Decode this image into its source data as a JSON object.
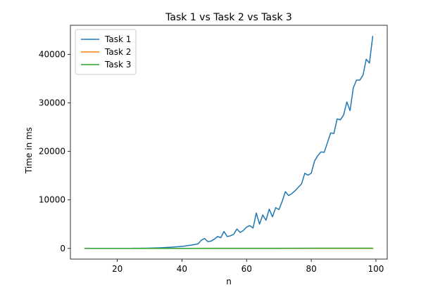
{
  "chart_data": {
    "type": "line",
    "title": "Task 1 vs Task 2 vs Task 3",
    "xlabel": "n",
    "ylabel": "Time in ms",
    "xlim": [
      5.5,
      103.5
    ],
    "ylim": [
      -2200,
      46000
    ],
    "xticks": [
      20,
      40,
      60,
      80,
      100
    ],
    "yticks": [
      0,
      10000,
      20000,
      30000,
      40000
    ],
    "grid": false,
    "legend_position": "upper-left",
    "series": [
      {
        "name": "Task 1",
        "color": "#1f77b4",
        "x": [
          10,
          11,
          12,
          13,
          14,
          15,
          16,
          17,
          18,
          19,
          20,
          21,
          22,
          23,
          24,
          25,
          26,
          27,
          28,
          29,
          30,
          31,
          32,
          33,
          34,
          35,
          36,
          37,
          38,
          39,
          40,
          41,
          42,
          43,
          44,
          45,
          46,
          47,
          48,
          49,
          50,
          51,
          52,
          53,
          54,
          55,
          56,
          57,
          58,
          59,
          60,
          61,
          62,
          63,
          64,
          65,
          66,
          67,
          68,
          69,
          70,
          71,
          72,
          73,
          74,
          75,
          76,
          77,
          78,
          79,
          80,
          81,
          82,
          83,
          84,
          85,
          86,
          87,
          88,
          89,
          90,
          91,
          92,
          93,
          94,
          95,
          96,
          97,
          98,
          99
        ],
        "values": [
          0,
          0,
          0,
          0,
          0,
          0,
          0,
          0,
          0,
          0,
          5,
          5,
          10,
          10,
          15,
          20,
          25,
          30,
          40,
          50,
          65,
          80,
          100,
          120,
          150,
          180,
          220,
          260,
          310,
          370,
          430,
          500,
          600,
          700,
          800,
          950,
          1700,
          2050,
          1400,
          1500,
          1900,
          2450,
          2200,
          3500,
          2450,
          2600,
          2900,
          4000,
          3300,
          3700,
          4400,
          4700,
          4200,
          7300,
          5000,
          6900,
          5800,
          8100,
          6500,
          8400,
          8000,
          9700,
          11700,
          10900,
          11300,
          11900,
          12600,
          13300,
          15500,
          15100,
          15500,
          18000,
          19100,
          19900,
          19800,
          21800,
          23800,
          23700,
          26700,
          26500,
          27500,
          30200,
          28400,
          33100,
          34700,
          34700,
          35700,
          39000,
          38200,
          43700
        ]
      },
      {
        "name": "Task 2",
        "color": "#ff7f0e",
        "x": [
          10,
          20,
          30,
          40,
          50,
          60,
          70,
          80,
          90,
          99
        ],
        "values": [
          0,
          0,
          0,
          0,
          0,
          0,
          0,
          0,
          0,
          0
        ]
      },
      {
        "name": "Task 3",
        "color": "#2ca02c",
        "x": [
          10,
          20,
          30,
          40,
          50,
          60,
          70,
          80,
          90,
          99
        ],
        "values": [
          0,
          5,
          10,
          15,
          20,
          25,
          30,
          35,
          40,
          45
        ]
      }
    ]
  }
}
